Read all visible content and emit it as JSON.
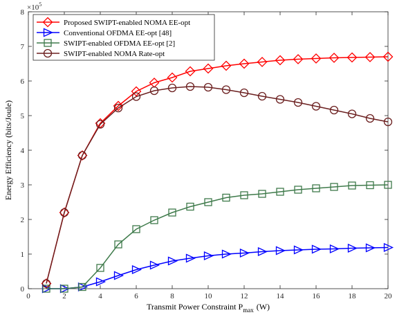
{
  "chart_data": {
    "type": "line",
    "xlabel": "Transmit Power Constraint P",
    "xlabel_sub": "max",
    "xlabel_unit": "(W)",
    "ylabel": "Energy Efficiency (bits/Joule)",
    "y_exponent_base": "×10",
    "y_exponent_power": "5",
    "xlim": [
      0,
      20
    ],
    "ylim": [
      0,
      8
    ],
    "xticks": [
      0,
      2,
      4,
      6,
      8,
      10,
      12,
      14,
      16,
      18,
      20
    ],
    "yticks": [
      0,
      1,
      2,
      3,
      4,
      5,
      6,
      7,
      8
    ],
    "legend_position": "top-left",
    "grid": false,
    "x": [
      1,
      2,
      3,
      4,
      5,
      6,
      7,
      8,
      9,
      10,
      11,
      12,
      13,
      14,
      15,
      16,
      17,
      18,
      19,
      20
    ],
    "series": [
      {
        "name": "Proposed SWIPT-enabled NOMA EE-opt",
        "color": "#ff0000",
        "marker": "diamond",
        "values": [
          0.15,
          2.2,
          3.85,
          4.78,
          5.28,
          5.7,
          5.95,
          6.1,
          6.28,
          6.36,
          6.44,
          6.5,
          6.55,
          6.6,
          6.63,
          6.65,
          6.67,
          6.68,
          6.69,
          6.7
        ]
      },
      {
        "name": "Conventional OFDMA EE-opt [48]",
        "color": "#0000ff",
        "marker": "triangle-right",
        "values": [
          0.0,
          0.0,
          0.05,
          0.2,
          0.38,
          0.55,
          0.68,
          0.8,
          0.88,
          0.95,
          1.0,
          1.03,
          1.07,
          1.1,
          1.12,
          1.14,
          1.15,
          1.17,
          1.18,
          1.19
        ]
      },
      {
        "name": "SWIPT-enabled OFDMA EE-opt [2]",
        "color": "#3e7a4a",
        "marker": "square",
        "values": [
          0.0,
          0.0,
          0.05,
          0.6,
          1.28,
          1.72,
          1.98,
          2.2,
          2.37,
          2.5,
          2.63,
          2.7,
          2.74,
          2.8,
          2.86,
          2.9,
          2.94,
          2.98,
          2.99,
          3.0
        ]
      },
      {
        "name": "SWIPT-enabled NOMA Rate-opt",
        "color": "#6b1f1f",
        "marker": "circle",
        "values": [
          0.15,
          2.2,
          3.85,
          4.75,
          5.22,
          5.55,
          5.72,
          5.8,
          5.84,
          5.82,
          5.75,
          5.66,
          5.56,
          5.47,
          5.38,
          5.27,
          5.16,
          5.05,
          4.92,
          4.82
        ]
      }
    ]
  }
}
